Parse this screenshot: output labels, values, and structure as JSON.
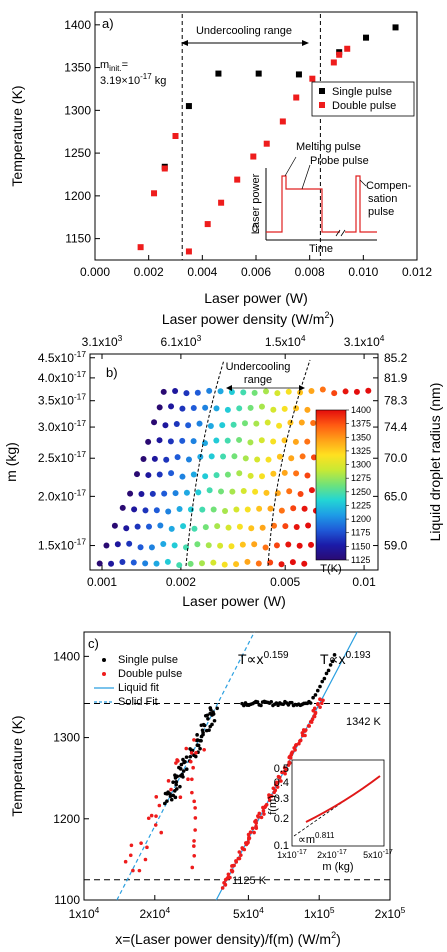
{
  "chart_data": [
    {
      "panel_label": "a)",
      "type": "scatter",
      "xlabel": "Laser power (W)",
      "ylabel": "Temperature (K)",
      "xlim": [
        0.0,
        0.012
      ],
      "ylim": [
        1125,
        1415
      ],
      "xticks": [
        0.0,
        0.002,
        0.004,
        0.006,
        0.008,
        0.01,
        0.012
      ],
      "xtick_labels": [
        "0.000",
        "0.002",
        "0.004",
        "0.006",
        "0.008",
        "0.010",
        "0.012"
      ],
      "yticks": [
        1150,
        1200,
        1250,
        1300,
        1350,
        1400
      ],
      "ytick_labels": [
        "1150",
        "1200",
        "1250",
        "1300",
        "1350",
        "1400"
      ],
      "legend": [
        "Single pulse",
        "Double pulse"
      ],
      "legend_position": "right",
      "series": [
        {
          "name": "Single pulse",
          "color": "#000000",
          "points": [
            [
              0.0026,
              1234
            ],
            [
              0.0035,
              1305
            ],
            [
              0.0046,
              1343
            ],
            [
              0.0061,
              1343
            ],
            [
              0.0076,
              1342
            ],
            [
              0.0091,
              1368
            ],
            [
              0.0101,
              1385
            ],
            [
              0.0112,
              1397
            ]
          ]
        },
        {
          "name": "Double pulse",
          "color": "#ee1c1c",
          "points": [
            [
              0.0017,
              1140
            ],
            [
              0.0022,
              1203
            ],
            [
              0.0026,
              1232
            ],
            [
              0.003,
              1270
            ],
            [
              0.0035,
              1135
            ],
            [
              0.0042,
              1167
            ],
            [
              0.0047,
              1192
            ],
            [
              0.0053,
              1219
            ],
            [
              0.0059,
              1246
            ],
            [
              0.0064,
              1261
            ],
            [
              0.007,
              1287
            ],
            [
              0.0075,
              1315
            ],
            [
              0.0081,
              1337
            ],
            [
              0.0089,
              1356
            ],
            [
              0.0091,
              1365
            ],
            [
              0.0094,
              1372
            ]
          ]
        }
      ],
      "vlines": [
        0.00325,
        0.0084
      ],
      "annotations": {
        "range_label": "Undercooling range",
        "minit_line1": "m",
        "minit_sub": "init.",
        "minit_eq": "=",
        "minit_line2": "3.19×10",
        "minit_exp": "-17",
        "minit_unit": " kg"
      },
      "inset": {
        "ylabel": "Laser power",
        "xlabel": "Time",
        "zero_label": "0",
        "labels": [
          "Melting pulse",
          "Probe pulse",
          "Compen-",
          "sation",
          "pulse"
        ]
      }
    },
    {
      "panel_label": "b)",
      "type": "scatter",
      "xlabel": "Laser power (W)",
      "ylabel": "m (kg)",
      "top_xlabel": "Laser power density (W/m",
      "top_xlabel_sup": "2",
      "top_xlabel_end": ")",
      "right_ylabel": "Liquid droplet radius (nm)",
      "x_scale": "log",
      "y_scale": "log",
      "xlim": [
        0.0009,
        0.0113
      ],
      "ylim": [
        1.3e-17,
        4.6e-17
      ],
      "xtick_labels": [
        "0.001",
        "0.002",
        "0.005",
        "0.01"
      ],
      "xticks": [
        0.001,
        0.002,
        0.005,
        0.01
      ],
      "ytick_mantissas": [
        "4.5x10",
        "4.0x10",
        "3.5x10",
        "3.0x10",
        "2.5x10",
        "2.0x10",
        "1.5x10"
      ],
      "ytick_values": [
        4.5e-17,
        4e-17,
        3.5e-17,
        3e-17,
        2.5e-17,
        2e-17,
        1.5e-17
      ],
      "ytick_exp": "-17",
      "top_tick_mantissas": [
        "3.1x10",
        "6.1x10",
        "1.5x10",
        "3.1x10"
      ],
      "top_tick_exps": [
        "3",
        "3",
        "4",
        "4"
      ],
      "top_tick_positions_W": [
        0.001,
        0.002,
        0.005,
        0.01
      ],
      "right_tick_labels": [
        "85.2",
        "81.9",
        "78.3",
        "74.4",
        "70.0",
        "65.0",
        "59.0"
      ],
      "range_label": "Undercooling",
      "range_label2": "range",
      "colorbar": {
        "label": "T(K)",
        "min": 1125,
        "max": 1400,
        "ticks": [
          "1400",
          "1375",
          "1350",
          "1325",
          "1300",
          "1275",
          "1250",
          "1225",
          "1200",
          "1175",
          "1150",
          "1125"
        ],
        "colors": [
          "#2a0a72",
          "#1b1ba8",
          "#1f5bd8",
          "#1e9ce6",
          "#23d6d4",
          "#6fe27a",
          "#c8e934",
          "#ffe020",
          "#ffa118",
          "#ff5a12",
          "#e40c0c"
        ]
      },
      "m_levels": [
        1.35e-17,
        1.5e-17,
        1.67e-17,
        1.85e-17,
        2.05e-17,
        2.27e-17,
        2.5e-17,
        2.75e-17,
        3.05e-17,
        3.35e-17,
        3.7e-17
      ],
      "row_start_power": [
        0.00098,
        0.00104,
        0.00112,
        0.0012,
        0.00128,
        0.00136,
        0.00144,
        0.0015,
        0.00158,
        0.00166,
        0.00172
      ],
      "power_ratio": 1.105,
      "points_per_row": 19
    },
    {
      "panel_label": "c)",
      "type": "scatter",
      "xlabel": "x=(Laser power density)/f(m) (W/m",
      "xlabel_sup": "2",
      "xlabel_end": ")",
      "ylabel": "Temperature (K)",
      "x_scale": "log",
      "xlim": [
        10000,
        200000
      ],
      "ylim": [
        1100,
        1430
      ],
      "xtick_mantissas": [
        "1x10",
        "2x10",
        "5x10",
        "1x10",
        "2x10"
      ],
      "xtick_exps": [
        "4",
        "4",
        "4",
        "5",
        "5"
      ],
      "xticks": [
        10000,
        20000,
        50000,
        100000,
        200000
      ],
      "yticks": [
        1100,
        1200,
        1300,
        1400
      ],
      "ytick_labels": [
        "1100",
        "1200",
        "1300",
        "1400"
      ],
      "legend": [
        "Single pulse",
        "Double pulse",
        "Liquid fit",
        "Solid Fit"
      ],
      "hlines": [
        {
          "y": 1342,
          "label": "1342 K"
        },
        {
          "y": 1125,
          "label": "1125 K"
        }
      ],
      "fits": [
        {
          "name": "Solid Fit",
          "style": "dashed",
          "exponent": "0.159",
          "x_at_1100": 13800,
          "x_at_1430": 53000
        },
        {
          "name": "Liquid fit",
          "style": "solid",
          "exponent": "0.193",
          "x_at_1100": 36500,
          "x_at_1430": 145000
        }
      ],
      "power_law_prefix": "T∝x",
      "inset": {
        "ylabel": "f(m)",
        "xlabel": "m (kg)",
        "yticks": [
          "0.5",
          "0.4",
          "0.3",
          "0.2",
          "0.1"
        ],
        "xtick_mantissas": [
          "1x10",
          "2x10",
          "5x10"
        ],
        "xtick_exp": "-17",
        "fit_label": "∝m",
        "fit_exp": "0.811"
      }
    }
  ]
}
